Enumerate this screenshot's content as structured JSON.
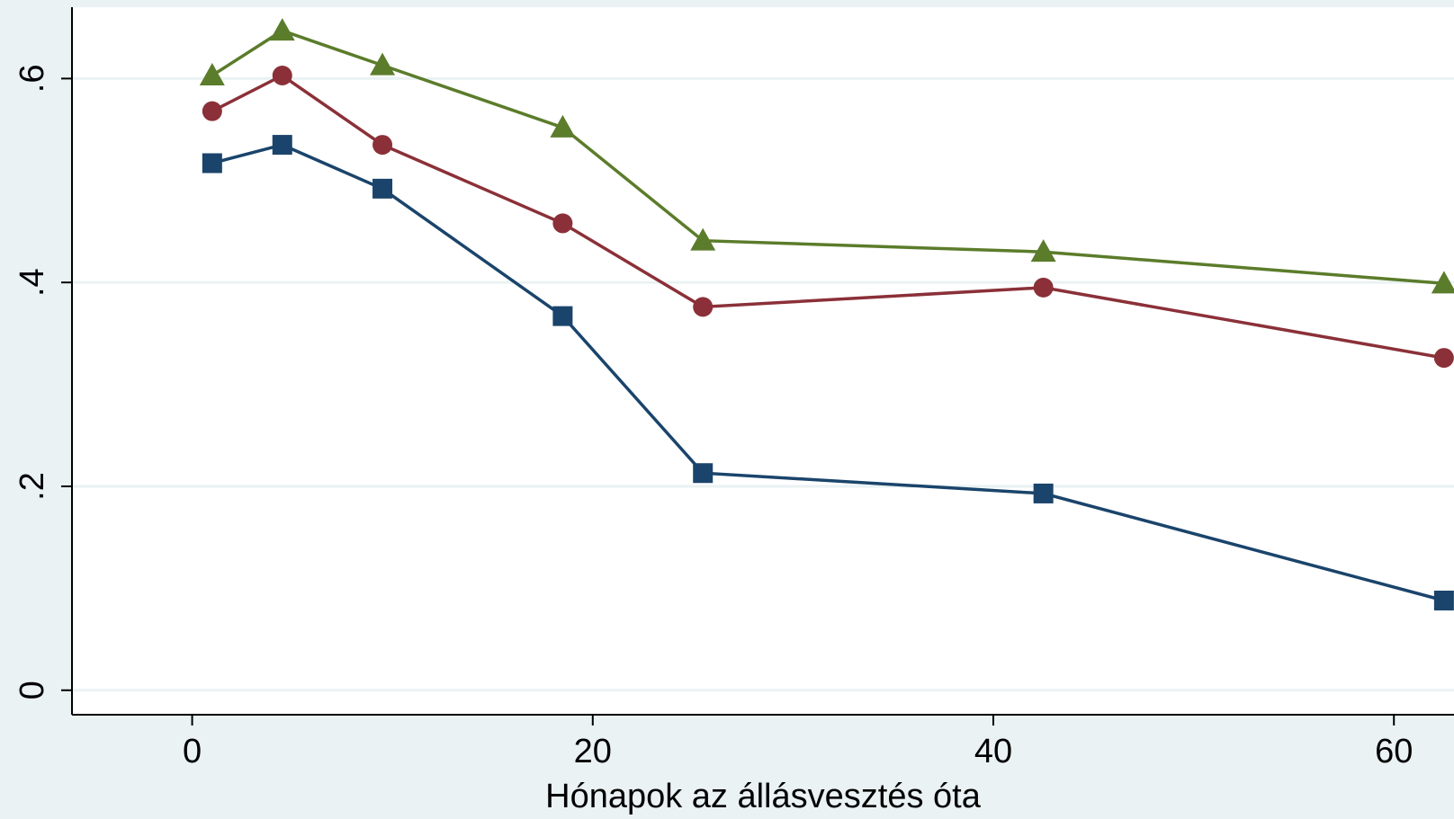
{
  "chart_data": {
    "type": "line",
    "title": "",
    "xlabel": "Hónapok az állásvesztés óta",
    "ylabel": "",
    "xlim": [
      -6,
      63
    ],
    "ylim": [
      -0.024,
      0.67
    ],
    "x_ticks": [
      0,
      20,
      40,
      60
    ],
    "x_tick_labels": [
      "0",
      "20",
      "40",
      "60"
    ],
    "y_ticks": [
      0,
      0.2,
      0.4,
      0.6
    ],
    "y_tick_labels": [
      "0",
      ".2",
      ".4",
      ".6"
    ],
    "grid": true,
    "legend": "none",
    "series": [
      {
        "color": "#5b7c2b",
        "marker": "triangle",
        "points": [
          [
            1,
            0.603
          ],
          [
            4.5,
            0.647
          ],
          [
            9.5,
            0.613
          ],
          [
            18.5,
            0.552
          ],
          [
            25.5,
            0.441
          ],
          [
            42.5,
            0.43
          ],
          [
            62.5,
            0.399
          ]
        ]
      },
      {
        "color": "#8b3038",
        "marker": "circle",
        "points": [
          [
            1,
            0.568
          ],
          [
            4.5,
            0.603
          ],
          [
            9.5,
            0.535
          ],
          [
            18.5,
            0.458
          ],
          [
            25.5,
            0.376
          ],
          [
            42.5,
            0.395
          ],
          [
            62.5,
            0.326
          ]
        ]
      },
      {
        "color": "#1a446b",
        "marker": "square",
        "points": [
          [
            1,
            0.517
          ],
          [
            4.5,
            0.535
          ],
          [
            9.5,
            0.492
          ],
          [
            18.5,
            0.367
          ],
          [
            25.5,
            0.213
          ],
          [
            42.5,
            0.193
          ],
          [
            62.5,
            0.088
          ]
        ]
      }
    ]
  }
}
